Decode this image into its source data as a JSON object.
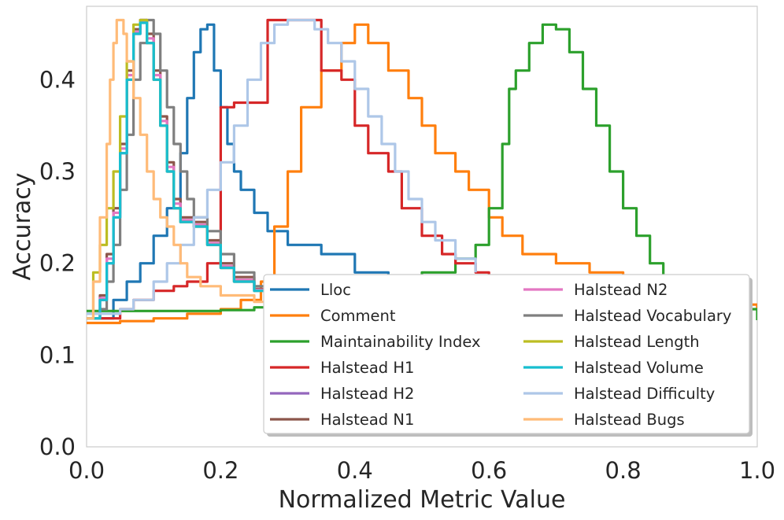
{
  "chart_data": {
    "type": "line",
    "title": "",
    "xlabel": "Normalized Metric Value",
    "ylabel": "Accuracy",
    "xlim": [
      0.0,
      1.0
    ],
    "ylim": [
      0.0,
      0.48
    ],
    "xticks": [
      "0.0",
      "0.2",
      "0.4",
      "0.6",
      "0.8",
      "1.0"
    ],
    "yticks": [
      "0.0",
      "0.1",
      "0.2",
      "0.3",
      "0.4"
    ],
    "grid": false,
    "legend_position": "lower-right",
    "series": [
      {
        "name": "Lloc",
        "color": "#1f77b4",
        "x": [
          0.0,
          0.03,
          0.04,
          0.06,
          0.08,
          0.1,
          0.12,
          0.14,
          0.15,
          0.16,
          0.17,
          0.18,
          0.19,
          0.2,
          0.21,
          0.22,
          0.23,
          0.25,
          0.27,
          0.3,
          0.35,
          0.4,
          0.45
        ],
        "y": [
          0.14,
          0.14,
          0.16,
          0.18,
          0.2,
          0.23,
          0.26,
          0.32,
          0.38,
          0.43,
          0.455,
          0.46,
          0.41,
          0.37,
          0.33,
          0.3,
          0.28,
          0.255,
          0.235,
          0.22,
          0.21,
          0.19,
          0.18
        ]
      },
      {
        "name": "Comment",
        "color": "#ff7f0e",
        "x": [
          0.0,
          0.05,
          0.1,
          0.15,
          0.2,
          0.23,
          0.26,
          0.28,
          0.3,
          0.32,
          0.35,
          0.38,
          0.4,
          0.42,
          0.45,
          0.48,
          0.5,
          0.52,
          0.55,
          0.57,
          0.6,
          0.62,
          0.65,
          0.7,
          0.75,
          0.8,
          0.9,
          1.0
        ],
        "y": [
          0.135,
          0.137,
          0.14,
          0.145,
          0.15,
          0.16,
          0.18,
          0.24,
          0.3,
          0.37,
          0.41,
          0.44,
          0.46,
          0.44,
          0.41,
          0.38,
          0.35,
          0.32,
          0.3,
          0.28,
          0.25,
          0.23,
          0.21,
          0.2,
          0.19,
          0.17,
          0.155,
          0.15
        ]
      },
      {
        "name": "Maintainability Index",
        "color": "#2ca02c",
        "x": [
          0.0,
          0.15,
          0.2,
          0.25,
          0.3,
          0.4,
          0.45,
          0.5,
          0.55,
          0.58,
          0.6,
          0.62,
          0.63,
          0.64,
          0.66,
          0.68,
          0.7,
          0.72,
          0.74,
          0.76,
          0.78,
          0.8,
          0.82,
          0.84,
          0.86,
          0.9,
          1.0
        ],
        "y": [
          0.148,
          0.148,
          0.149,
          0.152,
          0.155,
          0.16,
          0.17,
          0.19,
          0.205,
          0.22,
          0.26,
          0.33,
          0.39,
          0.41,
          0.44,
          0.46,
          0.455,
          0.43,
          0.39,
          0.35,
          0.3,
          0.26,
          0.23,
          0.2,
          0.17,
          0.15,
          0.138
        ]
      },
      {
        "name": "Halstead H1",
        "color": "#d62728",
        "x": [
          0.0,
          0.03,
          0.05,
          0.07,
          0.1,
          0.13,
          0.15,
          0.18,
          0.2,
          0.22,
          0.25,
          0.27,
          0.3,
          0.33,
          0.35,
          0.38,
          0.4,
          0.42,
          0.45,
          0.47,
          0.5,
          0.53,
          0.55,
          0.58,
          0.6
        ],
        "y": [
          0.14,
          0.14,
          0.15,
          0.16,
          0.17,
          0.175,
          0.18,
          0.2,
          0.37,
          0.375,
          0.375,
          0.465,
          0.465,
          0.465,
          0.41,
          0.4,
          0.35,
          0.32,
          0.3,
          0.26,
          0.23,
          0.21,
          0.2,
          0.19,
          0.18
        ]
      },
      {
        "name": "Halstead H2",
        "color": "#9467bd",
        "x": [
          0.0,
          0.02,
          0.03,
          0.04,
          0.05,
          0.06,
          0.07,
          0.08,
          0.09,
          0.1,
          0.11,
          0.12,
          0.13,
          0.14,
          0.16,
          0.18,
          0.2,
          0.22,
          0.25,
          0.3
        ],
        "y": [
          0.14,
          0.16,
          0.2,
          0.25,
          0.32,
          0.4,
          0.45,
          0.465,
          0.44,
          0.4,
          0.35,
          0.3,
          0.26,
          0.245,
          0.24,
          0.22,
          0.195,
          0.18,
          0.17,
          0.16
        ]
      },
      {
        "name": "Halstead N1",
        "color": "#8c564b",
        "x": [
          0.0,
          0.02,
          0.03,
          0.04,
          0.05,
          0.06,
          0.07,
          0.08,
          0.09,
          0.1,
          0.11,
          0.12,
          0.13,
          0.14,
          0.16,
          0.18,
          0.2,
          0.22,
          0.25,
          0.3
        ],
        "y": [
          0.14,
          0.165,
          0.21,
          0.26,
          0.33,
          0.41,
          0.455,
          0.465,
          0.45,
          0.41,
          0.36,
          0.31,
          0.27,
          0.25,
          0.245,
          0.225,
          0.2,
          0.185,
          0.172,
          0.16
        ]
      },
      {
        "name": "Halstead N2",
        "color": "#e377c2",
        "x": [
          0.0,
          0.02,
          0.03,
          0.04,
          0.05,
          0.06,
          0.07,
          0.08,
          0.09,
          0.1,
          0.11,
          0.12,
          0.13,
          0.14,
          0.16,
          0.18,
          0.2,
          0.22,
          0.25,
          0.3
        ],
        "y": [
          0.14,
          0.162,
          0.205,
          0.255,
          0.325,
          0.405,
          0.452,
          0.463,
          0.445,
          0.405,
          0.355,
          0.305,
          0.265,
          0.247,
          0.242,
          0.222,
          0.197,
          0.182,
          0.171,
          0.16
        ]
      },
      {
        "name": "Halstead Vocabulary",
        "color": "#7f7f7f",
        "x": [
          0.0,
          0.02,
          0.03,
          0.04,
          0.05,
          0.06,
          0.07,
          0.08,
          0.09,
          0.1,
          0.11,
          0.12,
          0.13,
          0.14,
          0.15,
          0.16,
          0.18,
          0.2,
          0.22,
          0.25,
          0.3
        ],
        "y": [
          0.14,
          0.15,
          0.18,
          0.22,
          0.28,
          0.34,
          0.4,
          0.44,
          0.465,
          0.45,
          0.41,
          0.37,
          0.33,
          0.3,
          0.27,
          0.25,
          0.235,
          0.21,
          0.19,
          0.175,
          0.165
        ]
      },
      {
        "name": "Halstead Length",
        "color": "#bcbd22",
        "x": [
          0.0,
          0.01,
          0.02,
          0.03,
          0.04,
          0.05,
          0.06,
          0.07,
          0.08,
          0.09,
          0.1,
          0.11,
          0.12,
          0.13,
          0.14,
          0.16,
          0.18,
          0.2,
          0.22,
          0.25,
          0.3
        ],
        "y": [
          0.14,
          0.19,
          0.22,
          0.26,
          0.3,
          0.36,
          0.42,
          0.46,
          0.465,
          0.44,
          0.4,
          0.35,
          0.3,
          0.26,
          0.245,
          0.24,
          0.22,
          0.195,
          0.18,
          0.17,
          0.16
        ]
      },
      {
        "name": "Halstead Volume",
        "color": "#17becf",
        "x": [
          0.0,
          0.02,
          0.03,
          0.04,
          0.05,
          0.06,
          0.07,
          0.08,
          0.09,
          0.1,
          0.11,
          0.12,
          0.13,
          0.14,
          0.16,
          0.18,
          0.2,
          0.22,
          0.25,
          0.3
        ],
        "y": [
          0.14,
          0.16,
          0.2,
          0.25,
          0.32,
          0.4,
          0.45,
          0.462,
          0.44,
          0.4,
          0.35,
          0.3,
          0.26,
          0.245,
          0.24,
          0.22,
          0.195,
          0.18,
          0.17,
          0.16
        ]
      },
      {
        "name": "Halstead Difficulty",
        "color": "#aec7e8",
        "x": [
          0.0,
          0.05,
          0.07,
          0.1,
          0.12,
          0.14,
          0.16,
          0.18,
          0.2,
          0.22,
          0.24,
          0.26,
          0.28,
          0.3,
          0.32,
          0.34,
          0.36,
          0.38,
          0.4,
          0.42,
          0.44,
          0.46,
          0.48,
          0.5,
          0.52,
          0.55,
          0.58
        ],
        "y": [
          0.145,
          0.15,
          0.16,
          0.18,
          0.2,
          0.22,
          0.25,
          0.28,
          0.31,
          0.35,
          0.4,
          0.44,
          0.46,
          0.465,
          0.465,
          0.455,
          0.44,
          0.42,
          0.39,
          0.36,
          0.33,
          0.3,
          0.27,
          0.245,
          0.225,
          0.205,
          0.19
        ]
      },
      {
        "name": "Halstead Bugs",
        "color": "#ffbb78",
        "x": [
          0.0,
          0.01,
          0.02,
          0.03,
          0.035,
          0.04,
          0.045,
          0.05,
          0.055,
          0.06,
          0.07,
          0.08,
          0.09,
          0.1,
          0.11,
          0.12,
          0.13,
          0.14,
          0.15,
          0.17,
          0.2,
          0.25,
          0.3
        ],
        "y": [
          0.14,
          0.18,
          0.25,
          0.33,
          0.4,
          0.44,
          0.465,
          0.465,
          0.45,
          0.42,
          0.38,
          0.34,
          0.3,
          0.27,
          0.25,
          0.24,
          0.22,
          0.2,
          0.185,
          0.175,
          0.165,
          0.158,
          0.155
        ]
      }
    ]
  }
}
